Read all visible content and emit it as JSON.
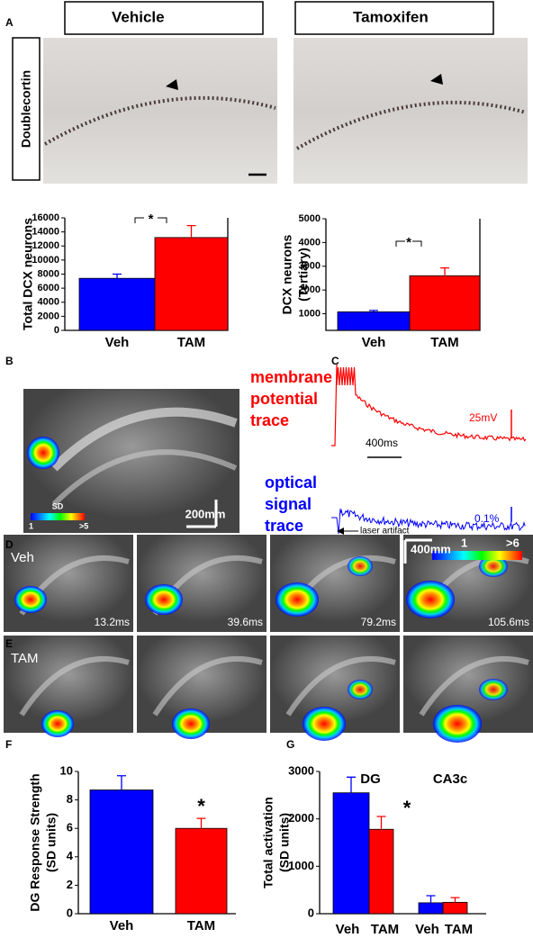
{
  "panel_labels": [
    "A",
    "B",
    "C",
    "D",
    "E",
    "F",
    "G"
  ],
  "panel_a": {
    "conditions": [
      "Vehicle",
      "Tamoxifen"
    ],
    "stain": "Doublecortin"
  },
  "panel_b": {
    "scale_bar": "200mm",
    "colorbar_label": "SD",
    "colorbar_min": "1",
    "colorbar_max": ">5"
  },
  "panel_c": {
    "membrane_label": [
      "membrane",
      "potential",
      "trace"
    ],
    "optical_label": [
      "optical",
      "signal",
      "trace"
    ],
    "voltage_scale": "25mV",
    "time_scale": "400ms",
    "optical_scale": "0.1%",
    "artifact_label": "laser artifact"
  },
  "panel_de": {
    "row_labels": [
      "Veh",
      "TAM"
    ],
    "times": [
      "13.2ms",
      "39.6ms",
      "79.2ms",
      "105.6ms"
    ],
    "scale_bar": "400mm",
    "colorbar_min": "1",
    "colorbar_max": ">6"
  },
  "chart_data": [
    {
      "type": "bar",
      "ylabel": [
        "Total DCX neurons"
      ],
      "categories": [
        "Veh",
        "TAM"
      ],
      "values": [
        7400,
        13200
      ],
      "errors": [
        600,
        1700
      ],
      "colors": [
        "#0000ff",
        "#ff0000"
      ],
      "ylim": [
        0,
        16000
      ],
      "yticks": [
        0,
        2000,
        4000,
        6000,
        8000,
        10000,
        12000,
        14000,
        16000
      ],
      "significance": "*"
    },
    {
      "type": "bar",
      "ylabel": [
        "DCX neurons",
        "(Tertiary)"
      ],
      "categories": [
        "Veh",
        "TAM"
      ],
      "values": [
        1080,
        2600
      ],
      "errors": [
        60,
        330
      ],
      "colors": [
        "#0000ff",
        "#ff0000"
      ],
      "ylim": [
        300,
        5000
      ],
      "yticks": [
        1000,
        2000,
        3000,
        4000,
        5000
      ],
      "significance": "*"
    },
    {
      "type": "bar",
      "ylabel": [
        "DG Response Strength",
        "(SD units)"
      ],
      "categories": [
        "Veh",
        "TAM"
      ],
      "values": [
        8.7,
        6.0
      ],
      "errors": [
        1.0,
        0.7
      ],
      "colors": [
        "#0000ff",
        "#ff0000"
      ],
      "ylim": [
        0,
        10
      ],
      "yticks": [
        0,
        2,
        4,
        6,
        8,
        10
      ],
      "significance": "*"
    },
    {
      "type": "bar",
      "ylabel": [
        "Total activation",
        "(SD units)"
      ],
      "categories": [
        "DG",
        "CA3c"
      ],
      "series": [
        {
          "name": "Veh",
          "color": "#0000ff",
          "values": [
            2550,
            230
          ],
          "errors": [
            330,
            150
          ]
        },
        {
          "name": "TAM",
          "color": "#ff0000",
          "values": [
            1780,
            240
          ],
          "errors": [
            270,
            100
          ]
        }
      ],
      "ylim": [
        0,
        3000
      ],
      "yticks": [
        0,
        1000,
        2000,
        3000
      ],
      "significance": "*"
    }
  ]
}
